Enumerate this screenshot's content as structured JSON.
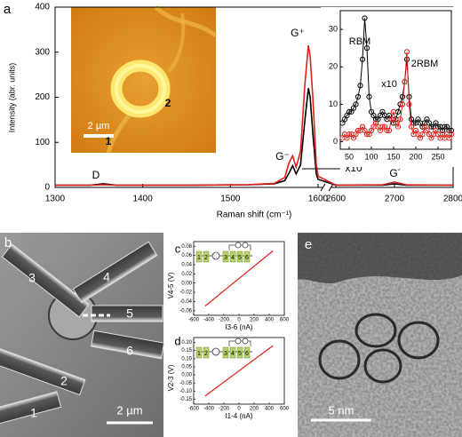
{
  "panels": {
    "a": "a",
    "b": "b",
    "c": "c",
    "d": "d",
    "e": "e"
  },
  "inset_image": {
    "labels": [
      "2",
      "1"
    ],
    "scale_bar": "2 µm"
  },
  "micrograph_b": {
    "electrodes": [
      "1",
      "2",
      "3",
      "4",
      "5",
      "6"
    ],
    "scale_bar": "2 µm"
  },
  "micrograph_e": {
    "scale_bar": "5 nm"
  },
  "chart_data": [
    {
      "type": "line",
      "x_label": "Raman shift (cm⁻¹)",
      "y_label": "Intensity (abr. units)",
      "xlim_segments": [
        [
          1300,
          1600
        ],
        [
          2600,
          2800
        ]
      ],
      "xticks": [
        1300,
        1400,
        1500,
        1600,
        2600,
        2700,
        2800
      ],
      "ylim": [
        0,
        400
      ],
      "yticks": [
        0,
        100,
        200,
        300,
        400
      ],
      "annotations": [
        "D",
        "G⁻",
        "G⁺",
        "x10",
        "G´"
      ],
      "series": [
        {
          "color": "#000000",
          "x": [
            1300,
            1340,
            1355,
            1370,
            1450,
            1520,
            1550,
            1562,
            1567,
            1571,
            1575,
            1580,
            1585,
            1589,
            1591,
            1594,
            1598,
            1600,
            2600,
            2680,
            2700,
            2720,
            2800
          ],
          "values": [
            5,
            5,
            8,
            5,
            5,
            6,
            8,
            15,
            32,
            48,
            30,
            50,
            150,
            220,
            200,
            120,
            30,
            18,
            5,
            5,
            8,
            5,
            5
          ]
        },
        {
          "color": "#e0201b",
          "x": [
            1300,
            1340,
            1355,
            1370,
            1450,
            1520,
            1550,
            1562,
            1567,
            1571,
            1575,
            1580,
            1585,
            1589,
            1591,
            1594,
            1598,
            1600,
            2600,
            2680,
            2700,
            2720,
            2800
          ],
          "values": [
            5,
            5,
            6,
            5,
            5,
            6,
            9,
            22,
            55,
            70,
            45,
            80,
            230,
            315,
            290,
            200,
            50,
            25,
            5,
            6,
            12,
            6,
            5
          ]
        }
      ]
    },
    {
      "type": "scatter-line",
      "annotations": [
        "RBM",
        "x10",
        "2RBM"
      ],
      "xlim": [
        30,
        280
      ],
      "xticks": [
        50,
        100,
        150,
        200,
        250
      ],
      "ylim": [
        -2,
        35
      ],
      "yticks": [
        0,
        10,
        20,
        30
      ],
      "x": [
        35,
        40,
        45,
        50,
        55,
        60,
        65,
        70,
        75,
        80,
        85,
        90,
        95,
        100,
        105,
        110,
        115,
        120,
        125,
        130,
        135,
        140,
        145,
        150,
        155,
        160,
        165,
        170,
        175,
        180,
        185,
        190,
        195,
        200,
        205,
        210,
        215,
        220,
        225,
        230,
        235,
        240,
        245,
        250,
        255,
        260,
        265,
        270,
        275,
        280
      ],
      "series": [
        {
          "color": "#000000",
          "values": [
            5,
            6,
            7,
            8,
            8,
            9,
            10,
            12,
            15,
            22,
            33,
            25,
            12,
            8,
            7,
            6,
            6,
            7,
            8,
            7,
            6,
            7,
            6,
            5,
            6,
            8,
            10,
            12,
            16,
            22,
            12,
            6,
            5,
            5,
            6,
            5,
            4,
            5,
            6,
            5,
            4,
            4,
            5,
            4,
            4,
            3,
            4,
            4,
            3,
            3
          ]
        },
        {
          "color": "#e0201b",
          "values": [
            1,
            2,
            1,
            2,
            2,
            1,
            2,
            3,
            3,
            4,
            3,
            2,
            2,
            3,
            4,
            5,
            4,
            3,
            4,
            4,
            3,
            3,
            6,
            8,
            5,
            4,
            6,
            10,
            16,
            24,
            10,
            4,
            2,
            3,
            2,
            1,
            2,
            4,
            3,
            2,
            1,
            2,
            3,
            2,
            1,
            2,
            1,
            2,
            1,
            2
          ]
        }
      ]
    },
    {
      "type": "line",
      "x_label": "I3-6 (nA)",
      "y_label": "V4-5 (V)",
      "schematic_labels": [
        "1",
        "2",
        "3",
        "4",
        "5",
        "6"
      ],
      "xlim": [
        -600,
        600
      ],
      "xticks": [
        -600,
        -400,
        -200,
        0,
        200,
        400,
        600
      ],
      "ylim": [
        -0.07,
        0.09
      ],
      "yticks": [
        -0.06,
        -0.04,
        -0.02,
        {
          "value": 0,
          "label": "0.00"
        },
        0.02,
        0.04,
        0.06,
        0.08
      ],
      "series": [
        {
          "color": "#e0201b",
          "x": [
            -450,
            450
          ],
          "values": [
            -0.05,
            0.07
          ]
        }
      ]
    },
    {
      "type": "line",
      "x_label": "I1-4 (nA)",
      "y_label": "V2-3 (V)",
      "schematic_labels": [
        "1",
        "2",
        "3",
        "4",
        "5",
        "6"
      ],
      "xlim": [
        -600,
        600
      ],
      "xticks": [
        -600,
        -400,
        -200,
        0,
        200,
        400,
        600
      ],
      "ylim": [
        -0.18,
        0.23
      ],
      "yticks": [
        -0.15,
        {
          "value": -0.1,
          "label": "-0.10"
        },
        -0.05,
        {
          "value": 0,
          "label": "0.00"
        },
        0.05,
        {
          "value": 0.1,
          "label": "0.10"
        },
        0.15,
        {
          "value": 0.2,
          "label": "0.20"
        }
      ],
      "series": [
        {
          "color": "#e0201b",
          "x": [
            -450,
            450
          ],
          "values": [
            -0.13,
            0.18
          ]
        }
      ]
    }
  ]
}
